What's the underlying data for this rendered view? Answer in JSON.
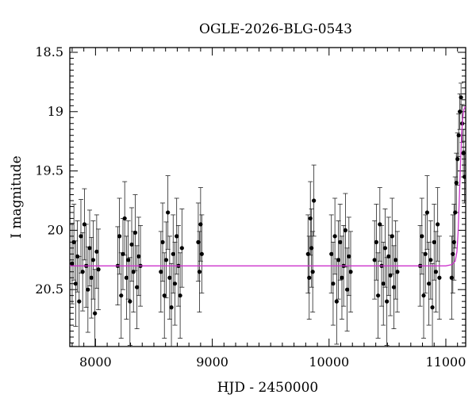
{
  "chart_data": {
    "type": "scatter",
    "title": "OGLE-2026-BLG-0543",
    "xlabel": "HJD - 2450000",
    "ylabel": "I magnitude",
    "xlim": [
      7780,
      11170
    ],
    "ylim": [
      20.98,
      18.46
    ],
    "y_inverted": true,
    "x_ticks": [
      8000,
      9000,
      10000,
      11000
    ],
    "x_tick_labels": [
      "8000",
      "9000",
      "10000",
      "11000"
    ],
    "y_ticks": [
      18.5,
      19,
      19.5,
      20,
      20.5
    ],
    "y_tick_labels": [
      "18.5",
      "19",
      "19.5",
      "20",
      "20.5"
    ],
    "grid": false,
    "colors": {
      "data": "#000000",
      "model": "#cc33cc"
    },
    "series": [
      {
        "kind": "observations",
        "points": [
          [
            7800,
            20.28,
            0.34
          ],
          [
            7815,
            20.1,
            0.32
          ],
          [
            7830,
            20.45,
            0.36
          ],
          [
            7845,
            20.22,
            0.3
          ],
          [
            7860,
            20.6,
            0.38
          ],
          [
            7875,
            20.05,
            0.31
          ],
          [
            7890,
            20.35,
            0.33
          ],
          [
            7905,
            19.95,
            0.3
          ],
          [
            7920,
            20.3,
            0.35
          ],
          [
            7935,
            20.5,
            0.36
          ],
          [
            7950,
            20.15,
            0.32
          ],
          [
            7965,
            20.4,
            0.34
          ],
          [
            7980,
            20.25,
            0.33
          ],
          [
            7995,
            20.7,
            0.37
          ],
          [
            8010,
            20.18,
            0.31
          ],
          [
            8025,
            20.33,
            0.34
          ],
          [
            8190,
            20.3,
            0.33
          ],
          [
            8205,
            20.05,
            0.32
          ],
          [
            8220,
            20.55,
            0.36
          ],
          [
            8235,
            20.2,
            0.3
          ],
          [
            8250,
            19.9,
            0.31
          ],
          [
            8265,
            20.4,
            0.35
          ],
          [
            8280,
            20.25,
            0.33
          ],
          [
            8295,
            20.6,
            0.37
          ],
          [
            8310,
            20.12,
            0.31
          ],
          [
            8325,
            20.35,
            0.34
          ],
          [
            8340,
            20.02,
            0.32
          ],
          [
            8355,
            20.48,
            0.35
          ],
          [
            8370,
            20.22,
            0.33
          ],
          [
            8385,
            20.3,
            0.34
          ],
          [
            8560,
            20.35,
            0.34
          ],
          [
            8575,
            20.1,
            0.33
          ],
          [
            8590,
            20.55,
            0.36
          ],
          [
            8605,
            20.25,
            0.32
          ],
          [
            8620,
            19.85,
            0.31
          ],
          [
            8635,
            20.4,
            0.35
          ],
          [
            8650,
            20.65,
            0.37
          ],
          [
            8665,
            20.2,
            0.33
          ],
          [
            8680,
            20.45,
            0.35
          ],
          [
            8695,
            20.05,
            0.32
          ],
          [
            8710,
            20.3,
            0.34
          ],
          [
            8725,
            20.55,
            0.36
          ],
          [
            8740,
            20.15,
            0.33
          ],
          [
            8880,
            20.1,
            0.33
          ],
          [
            8890,
            20.35,
            0.34
          ],
          [
            8900,
            19.95,
            0.31
          ],
          [
            8910,
            20.2,
            0.33
          ],
          [
            9820,
            20.2,
            0.33
          ],
          [
            9830,
            20.4,
            0.35
          ],
          [
            9840,
            19.9,
            0.31
          ],
          [
            9850,
            20.15,
            0.33
          ],
          [
            9860,
            20.35,
            0.34
          ],
          [
            9870,
            19.75,
            0.3
          ],
          [
            10020,
            20.2,
            0.33
          ],
          [
            10035,
            20.45,
            0.35
          ],
          [
            10050,
            20.05,
            0.32
          ],
          [
            10065,
            20.6,
            0.36
          ],
          [
            10080,
            20.25,
            0.33
          ],
          [
            10095,
            20.1,
            0.32
          ],
          [
            10110,
            20.4,
            0.35
          ],
          [
            10125,
            20.3,
            0.34
          ],
          [
            10140,
            20.0,
            0.31
          ],
          [
            10155,
            20.5,
            0.35
          ],
          [
            10170,
            20.22,
            0.33
          ],
          [
            10185,
            20.35,
            0.34
          ],
          [
            10390,
            20.25,
            0.33
          ],
          [
            10405,
            20.1,
            0.32
          ],
          [
            10420,
            20.55,
            0.36
          ],
          [
            10435,
            19.95,
            0.31
          ],
          [
            10450,
            20.3,
            0.34
          ],
          [
            10465,
            20.45,
            0.35
          ],
          [
            10480,
            20.15,
            0.33
          ],
          [
            10495,
            20.6,
            0.37
          ],
          [
            10510,
            20.22,
            0.33
          ],
          [
            10525,
            20.38,
            0.34
          ],
          [
            10540,
            20.05,
            0.32
          ],
          [
            10555,
            20.48,
            0.35
          ],
          [
            10570,
            20.25,
            0.33
          ],
          [
            10585,
            20.35,
            0.34
          ],
          [
            10780,
            20.3,
            0.34
          ],
          [
            10795,
            20.05,
            0.32
          ],
          [
            10810,
            20.55,
            0.36
          ],
          [
            10825,
            20.2,
            0.33
          ],
          [
            10840,
            19.85,
            0.31
          ],
          [
            10855,
            20.45,
            0.35
          ],
          [
            10870,
            20.25,
            0.33
          ],
          [
            10885,
            20.65,
            0.37
          ],
          [
            10900,
            20.1,
            0.32
          ],
          [
            10915,
            20.35,
            0.34
          ],
          [
            10930,
            19.95,
            0.31
          ],
          [
            10945,
            20.4,
            0.35
          ],
          [
            11050,
            20.4,
            0.35
          ],
          [
            11060,
            20.2,
            0.33
          ],
          [
            11070,
            20.1,
            0.32
          ],
          [
            11080,
            19.85,
            0.3
          ],
          [
            11090,
            19.6,
            0.25
          ],
          [
            11100,
            19.4,
            0.22
          ],
          [
            11110,
            19.2,
            0.18
          ],
          [
            11120,
            19.0,
            0.15
          ],
          [
            11130,
            18.88,
            0.12
          ],
          [
            11140,
            19.1,
            0.16
          ],
          [
            11150,
            19.35,
            0.2
          ],
          [
            11160,
            19.55,
            0.22
          ]
        ]
      },
      {
        "kind": "model",
        "points": [
          [
            7780,
            20.3
          ],
          [
            11000,
            20.3
          ],
          [
            11050,
            20.29
          ],
          [
            11080,
            20.26
          ],
          [
            11095,
            20.18
          ],
          [
            11105,
            20.02
          ],
          [
            11115,
            19.75
          ],
          [
            11125,
            19.45
          ],
          [
            11135,
            19.2
          ],
          [
            11145,
            19.05
          ],
          [
            11155,
            18.98
          ],
          [
            11165,
            18.96
          ],
          [
            11170,
            18.96
          ]
        ]
      }
    ]
  }
}
